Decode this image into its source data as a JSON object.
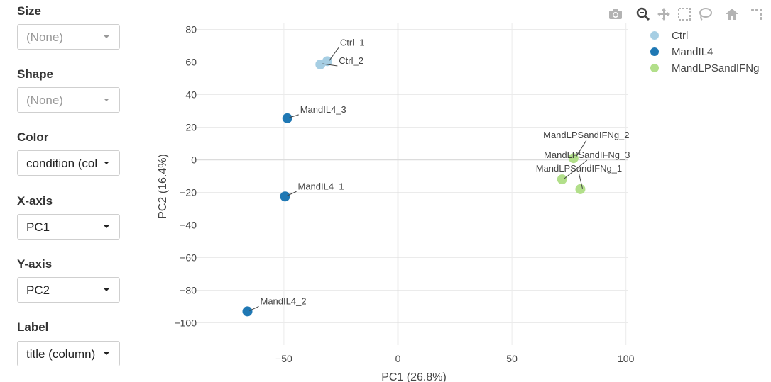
{
  "sidebar": {
    "controls": [
      {
        "label": "Size",
        "value": "(None)",
        "disabled": true
      },
      {
        "label": "Shape",
        "value": "(None)",
        "disabled": true
      },
      {
        "label": "Color",
        "value": "condition (column)",
        "disabled": false
      },
      {
        "label": "X-axis",
        "value": "PC1",
        "disabled": false
      },
      {
        "label": "Y-axis",
        "value": "PC2",
        "disabled": false
      },
      {
        "label": "Label",
        "value": "title (column)",
        "disabled": false
      }
    ]
  },
  "modebar": {
    "icons": [
      "camera-icon",
      "zoom-icon",
      "pan-icon",
      "box-select-icon",
      "lasso-icon",
      "home-icon",
      "plotly-logo-icon"
    ]
  },
  "chart_data": {
    "type": "scatter",
    "xlabel": "PC1 (26.8%)",
    "ylabel": "PC2 (16.4%)",
    "xlim": [
      -90,
      100
    ],
    "ylim": [
      -107,
      86
    ],
    "xticks": [
      -50,
      0,
      50,
      100
    ],
    "yticks": [
      80,
      60,
      40,
      20,
      0,
      -20,
      -40,
      -60,
      -80,
      -100
    ],
    "xtick_labels": [
      "−50",
      "0",
      "50",
      "100"
    ],
    "ytick_labels": [
      "80",
      "60",
      "40",
      "20",
      "0",
      "−20",
      "−40",
      "−60",
      "−80",
      "−100"
    ],
    "grid": true,
    "legend_position": "top-right",
    "series": [
      {
        "name": "Ctrl",
        "color": "#a6cee3",
        "points": [
          {
            "x": -31,
            "y": 60.5,
            "label": "Ctrl_1"
          },
          {
            "x": -34,
            "y": 58.5,
            "label": "Ctrl_2"
          }
        ]
      },
      {
        "name": "MandIL4",
        "color": "#1f78b4",
        "points": [
          {
            "x": -49.5,
            "y": -22.5,
            "label": "MandIL4_1"
          },
          {
            "x": -66,
            "y": -93,
            "label": "MandIL4_2"
          },
          {
            "x": -48.5,
            "y": 25.5,
            "label": "MandIL4_3"
          }
        ]
      },
      {
        "name": "MandLPSandIFNg",
        "color": "#b2df8a",
        "points": [
          {
            "x": 80,
            "y": -18,
            "label": "MandLPSandIFNg_1"
          },
          {
            "x": 77,
            "y": 1,
            "label": "MandLPSandIFNg_2"
          },
          {
            "x": 72,
            "y": -12,
            "label": "MandLPSandIFNg_3"
          }
        ]
      }
    ]
  }
}
